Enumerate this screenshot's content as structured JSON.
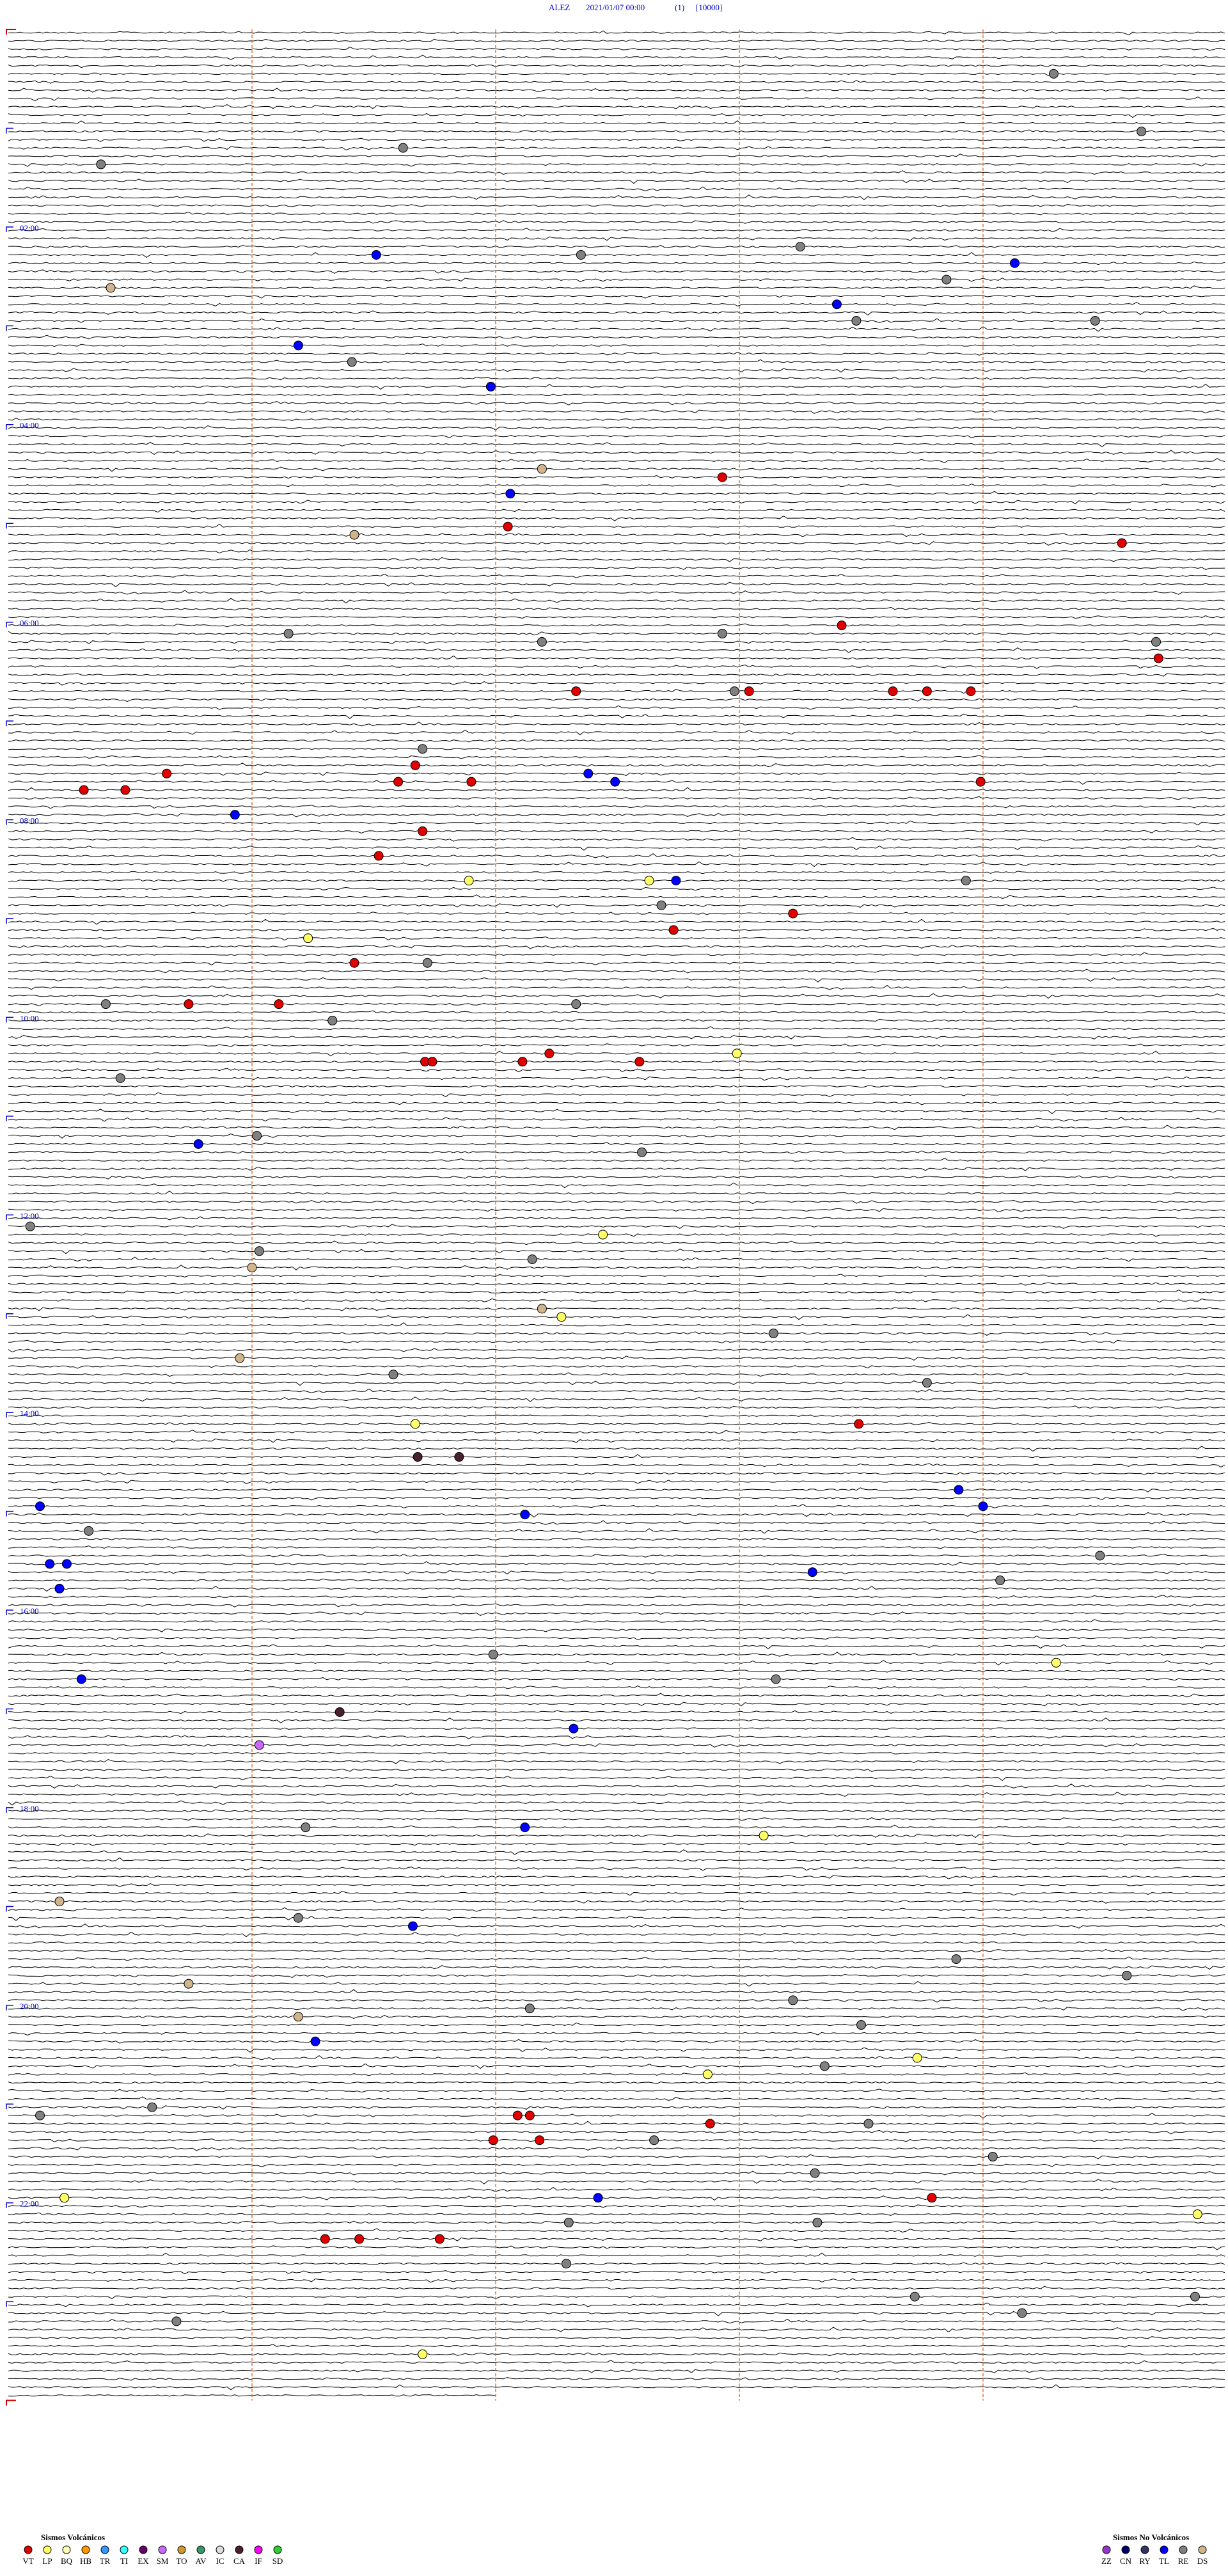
{
  "header": {
    "station": "ALEZ",
    "datetime": "2021/01/07 00:00",
    "component": "(1)",
    "gain": "[10000]"
  },
  "hour_labels": [
    {
      "row": 24,
      "label": "02:00"
    },
    {
      "row": 48,
      "label": "04:00"
    },
    {
      "row": 72,
      "label": "06:00"
    },
    {
      "row": 96,
      "label": "08:00"
    },
    {
      "row": 120,
      "label": "10:00"
    },
    {
      "row": 144,
      "label": "12:00"
    },
    {
      "row": 168,
      "label": "14:00"
    },
    {
      "row": 192,
      "label": "16:00"
    },
    {
      "row": 216,
      "label": "18:00"
    },
    {
      "row": 240,
      "label": "20:00"
    },
    {
      "row": 264,
      "label": "22:00"
    }
  ],
  "legend": {
    "volcanic": {
      "title": "Sismos Volcánicos",
      "items": [
        {
          "code": "VT",
          "color": "#e00000"
        },
        {
          "code": "LP",
          "color": "#ffff66"
        },
        {
          "code": "BQ",
          "color": "#ffffb0"
        },
        {
          "code": "HB",
          "color": "#ff9900"
        },
        {
          "code": "TR",
          "color": "#3399ff"
        },
        {
          "code": "TI",
          "color": "#33ffff"
        },
        {
          "code": "EX",
          "color": "#660066"
        },
        {
          "code": "SM",
          "color": "#cc66ff"
        },
        {
          "code": "TO",
          "color": "#cc9933"
        },
        {
          "code": "AV",
          "color": "#339966"
        },
        {
          "code": "IC",
          "color": "#dddddd"
        },
        {
          "code": "CA",
          "color": "#4a2030"
        },
        {
          "code": "IF",
          "color": "#ff00ff"
        },
        {
          "code": "SD",
          "color": "#33cc33"
        }
      ]
    },
    "non_volcanic": {
      "title": "Sismos No Volcánicos",
      "items": [
        {
          "code": "ZZ",
          "color": "#9933cc"
        },
        {
          "code": "CN",
          "color": "#000066"
        },
        {
          "code": "RY",
          "color": "#333366"
        },
        {
          "code": "TL",
          "color": "#0000ff"
        },
        {
          "code": "RE",
          "color": "#808080"
        },
        {
          "code": "DS",
          "color": "#d2b48c"
        }
      ]
    }
  },
  "events": [
    {
      "type": "RE",
      "row": 5,
      "minute": 4.29
    },
    {
      "type": "RE",
      "row": 12,
      "minute": 4.65
    },
    {
      "type": "RE",
      "row": 14,
      "minute": 1.62
    },
    {
      "type": "RE",
      "row": 16,
      "minute": 0.38
    },
    {
      "type": "TL",
      "row": 27,
      "minute": 1.51
    },
    {
      "type": "RE",
      "row": 27,
      "minute": 2.35
    },
    {
      "type": "RE",
      "row": 26,
      "minute": 3.25
    },
    {
      "type": "TL",
      "row": 28,
      "minute": 4.13
    },
    {
      "type": "RE",
      "row": 30,
      "minute": 3.85
    },
    {
      "type": "DS",
      "row": 31,
      "minute": 0.42
    },
    {
      "type": "TL",
      "row": 33,
      "minute": 3.4
    },
    {
      "type": "RE",
      "row": 35,
      "minute": 3.48
    },
    {
      "type": "RE",
      "row": 35,
      "minute": 4.46
    },
    {
      "type": "TL",
      "row": 38,
      "minute": 1.19
    },
    {
      "type": "RE",
      "row": 40,
      "minute": 1.41
    },
    {
      "type": "TL",
      "row": 43,
      "minute": 1.98
    },
    {
      "type": "DS",
      "row": 53,
      "minute": 2.19
    },
    {
      "type": "VT",
      "row": 54,
      "minute": 2.93
    },
    {
      "type": "TL",
      "row": 56,
      "minute": 2.06
    },
    {
      "type": "DS",
      "row": 61,
      "minute": 1.42
    },
    {
      "type": "VT",
      "row": 60,
      "minute": 2.05
    },
    {
      "type": "VT",
      "row": 62,
      "minute": 4.57
    },
    {
      "type": "VT",
      "row": 72,
      "minute": 3.42
    },
    {
      "type": "RE",
      "row": 73,
      "minute": 1.15
    },
    {
      "type": "RE",
      "row": 73,
      "minute": 2.93
    },
    {
      "type": "RE",
      "row": 74,
      "minute": 2.19
    },
    {
      "type": "RE",
      "row": 74,
      "minute": 4.71
    },
    {
      "type": "VT",
      "row": 76,
      "minute": 4.72
    },
    {
      "type": "VT",
      "row": 80,
      "minute": 2.33
    },
    {
      "type": "RE",
      "row": 80,
      "minute": 2.98
    },
    {
      "type": "VT",
      "row": 80,
      "minute": 3.04
    },
    {
      "type": "VT",
      "row": 80,
      "minute": 3.63
    },
    {
      "type": "VT",
      "row": 80,
      "minute": 3.77
    },
    {
      "type": "VT",
      "row": 80,
      "minute": 3.95
    },
    {
      "type": "RE",
      "row": 87,
      "minute": 1.7
    },
    {
      "type": "VT",
      "row": 89,
      "minute": 1.67
    },
    {
      "type": "VT",
      "row": 90,
      "minute": 0.65
    },
    {
      "type": "TL",
      "row": 90,
      "minute": 2.38
    },
    {
      "type": "VT",
      "row": 91,
      "minute": 1.6
    },
    {
      "type": "VT",
      "row": 91,
      "minute": 1.9
    },
    {
      "type": "TL",
      "row": 91,
      "minute": 2.49
    },
    {
      "type": "VT",
      "row": 91,
      "minute": 3.99
    },
    {
      "type": "VT",
      "row": 92,
      "minute": 0.31
    },
    {
      "type": "VT",
      "row": 92,
      "minute": 0.48
    },
    {
      "type": "TL",
      "row": 95,
      "minute": 0.93
    },
    {
      "type": "VT",
      "row": 97,
      "minute": 1.7
    },
    {
      "type": "VT",
      "row": 100,
      "minute": 1.52
    },
    {
      "type": "LP",
      "row": 103,
      "minute": 1.89
    },
    {
      "type": "LP",
      "row": 103,
      "minute": 2.63
    },
    {
      "type": "TL",
      "row": 103,
      "minute": 2.74
    },
    {
      "type": "RE",
      "row": 103,
      "minute": 3.93
    },
    {
      "type": "RE",
      "row": 106,
      "minute": 2.68
    },
    {
      "type": "VT",
      "row": 107,
      "minute": 3.22
    },
    {
      "type": "VT",
      "row": 109,
      "minute": 2.73
    },
    {
      "type": "LP",
      "row": 110,
      "minute": 1.23
    },
    {
      "type": "VT",
      "row": 113,
      "minute": 1.42
    },
    {
      "type": "RE",
      "row": 113,
      "minute": 1.72
    },
    {
      "type": "RE",
      "row": 118,
      "minute": 0.4
    },
    {
      "type": "VT",
      "row": 118,
      "minute": 0.74
    },
    {
      "type": "VT",
      "row": 118,
      "minute": 1.11
    },
    {
      "type": "RE",
      "row": 118,
      "minute": 2.33
    },
    {
      "type": "RE",
      "row": 120,
      "minute": 1.33
    },
    {
      "type": "LP",
      "row": 124,
      "minute": 2.99
    },
    {
      "type": "VT",
      "row": 124,
      "minute": 2.22
    },
    {
      "type": "VT",
      "row": 125,
      "minute": 1.71
    },
    {
      "type": "VT",
      "row": 125,
      "minute": 1.74
    },
    {
      "type": "VT",
      "row": 125,
      "minute": 2.11
    },
    {
      "type": "VT",
      "row": 125,
      "minute": 2.59
    },
    {
      "type": "RE",
      "row": 127,
      "minute": 0.46
    },
    {
      "type": "RE",
      "row": 134,
      "minute": 1.02
    },
    {
      "type": "TL",
      "row": 135,
      "minute": 0.78
    },
    {
      "type": "RE",
      "row": 136,
      "minute": 2.6
    },
    {
      "type": "RE",
      "row": 145,
      "minute": 0.09
    },
    {
      "type": "LP",
      "row": 146,
      "minute": 2.44
    },
    {
      "type": "RE",
      "row": 148,
      "minute": 1.03
    },
    {
      "type": "RE",
      "row": 149,
      "minute": 2.15
    },
    {
      "type": "DS",
      "row": 150,
      "minute": 1.0
    },
    {
      "type": "DS",
      "row": 155,
      "minute": 2.19
    },
    {
      "type": "LP",
      "row": 156,
      "minute": 2.27
    },
    {
      "type": "RE",
      "row": 158,
      "minute": 3.14
    },
    {
      "type": "DS",
      "row": 161,
      "minute": 0.95
    },
    {
      "type": "RE",
      "row": 163,
      "minute": 1.58
    },
    {
      "type": "RE",
      "row": 164,
      "minute": 3.77
    },
    {
      "type": "VT",
      "row": 169,
      "minute": 3.49
    },
    {
      "type": "LP",
      "row": 169,
      "minute": 1.67
    },
    {
      "type": "CA",
      "row": 173,
      "minute": 1.68
    },
    {
      "type": "CA",
      "row": 173,
      "minute": 1.85
    },
    {
      "type": "TL",
      "row": 177,
      "minute": 3.9
    },
    {
      "type": "TL",
      "row": 179,
      "minute": 0.13
    },
    {
      "type": "TL",
      "row": 179,
      "minute": 4.0
    },
    {
      "type": "TL",
      "row": 180,
      "minute": 2.12
    },
    {
      "type": "RE",
      "row": 182,
      "minute": 0.33
    },
    {
      "type": "RE",
      "row": 185,
      "minute": 4.48
    },
    {
      "type": "TL",
      "row": 186,
      "minute": 0.17
    },
    {
      "type": "TL",
      "row": 186,
      "minute": 0.24
    },
    {
      "type": "TL",
      "row": 187,
      "minute": 3.3
    },
    {
      "type": "RE",
      "row": 188,
      "minute": 4.07
    },
    {
      "type": "TL",
      "row": 189,
      "minute": 0.21
    },
    {
      "type": "RE",
      "row": 197,
      "minute": 1.99
    },
    {
      "type": "LP",
      "row": 198,
      "minute": 4.3
    },
    {
      "type": "TL",
      "row": 200,
      "minute": 0.3
    },
    {
      "type": "RE",
      "row": 200,
      "minute": 3.15
    },
    {
      "type": "CA",
      "row": 204,
      "minute": 1.36
    },
    {
      "type": "TL",
      "row": 206,
      "minute": 2.32
    },
    {
      "type": "SM",
      "row": 208,
      "minute": 1.03
    },
    {
      "type": "RE",
      "row": 218,
      "minute": 1.22
    },
    {
      "type": "TL",
      "row": 218,
      "minute": 2.12
    },
    {
      "type": "LP",
      "row": 219,
      "minute": 3.1
    },
    {
      "type": "DS",
      "row": 227,
      "minute": 0.21
    },
    {
      "type": "RE",
      "row": 229,
      "minute": 1.19
    },
    {
      "type": "TL",
      "row": 230,
      "minute": 1.66
    },
    {
      "type": "RE",
      "row": 234,
      "minute": 3.89
    },
    {
      "type": "RE",
      "row": 236,
      "minute": 4.59
    },
    {
      "type": "DS",
      "row": 237,
      "minute": 0.74
    },
    {
      "type": "RE",
      "row": 240,
      "minute": 2.14
    },
    {
      "type": "RE",
      "row": 239,
      "minute": 3.22
    },
    {
      "type": "DS",
      "row": 241,
      "minute": 1.19
    },
    {
      "type": "RE",
      "row": 242,
      "minute": 3.5
    },
    {
      "type": "TL",
      "row": 244,
      "minute": 1.26
    },
    {
      "type": "LP",
      "row": 246,
      "minute": 3.73
    },
    {
      "type": "RE",
      "row": 247,
      "minute": 3.35
    },
    {
      "type": "LP",
      "row": 248,
      "minute": 2.87
    },
    {
      "type": "RE",
      "row": 253,
      "minute": 0.13
    },
    {
      "type": "RE",
      "row": 252,
      "minute": 0.59
    },
    {
      "type": "VT",
      "row": 253,
      "minute": 2.09
    },
    {
      "type": "VT",
      "row": 253,
      "minute": 2.14
    },
    {
      "type": "RE",
      "row": 254,
      "minute": 3.53
    },
    {
      "type": "VT",
      "row": 254,
      "minute": 2.88
    },
    {
      "type": "VT",
      "row": 256,
      "minute": 1.99
    },
    {
      "type": "VT",
      "row": 256,
      "minute": 2.18
    },
    {
      "type": "RE",
      "row": 256,
      "minute": 2.65
    },
    {
      "type": "RE",
      "row": 258,
      "minute": 4.04
    },
    {
      "type": "RE",
      "row": 260,
      "minute": 3.31
    },
    {
      "type": "LP",
      "row": 263,
      "minute": 0.23
    },
    {
      "type": "TL",
      "row": 263,
      "minute": 2.42
    },
    {
      "type": "VT",
      "row": 263,
      "minute": 3.79
    },
    {
      "type": "LP",
      "row": 265,
      "minute": 4.88
    },
    {
      "type": "RE",
      "row": 266,
      "minute": 2.3
    },
    {
      "type": "RE",
      "row": 266,
      "minute": 3.32
    },
    {
      "type": "VT",
      "row": 268,
      "minute": 1.3
    },
    {
      "type": "VT",
      "row": 268,
      "minute": 1.44
    },
    {
      "type": "VT",
      "row": 268,
      "minute": 1.77
    },
    {
      "type": "RE",
      "row": 271,
      "minute": 2.29
    },
    {
      "type": "RE",
      "row": 275,
      "minute": 3.72
    },
    {
      "type": "RE",
      "row": 275,
      "minute": 4.87
    },
    {
      "type": "RE",
      "row": 278,
      "minute": 0.69
    },
    {
      "type": "RE",
      "row": 277,
      "minute": 4.16
    },
    {
      "type": "LP",
      "row": 282,
      "minute": 1.7
    }
  ]
}
